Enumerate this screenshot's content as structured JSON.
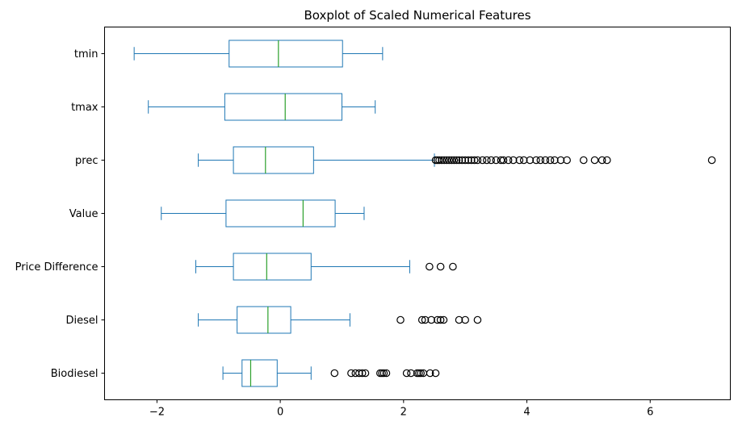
{
  "chart_data": {
    "type": "boxplot",
    "orientation": "horizontal",
    "title": "Boxplot of Scaled Numerical Features",
    "xlim": [
      -2.85,
      7.3
    ],
    "xticks": [
      -2,
      0,
      2,
      4,
      6
    ],
    "xtick_labels": [
      "−2",
      "0",
      "2",
      "4",
      "6"
    ],
    "grid": false,
    "colors": {
      "box": "#1f77b4",
      "median": "#2ca02c",
      "outlier": "#000000",
      "axes": "#000000"
    },
    "categories": [
      "Biodiesel",
      "Diesel",
      "Price Difference",
      "Value",
      "prec",
      "tmax",
      "tmin"
    ],
    "boxes": [
      {
        "name": "Biodiesel",
        "whisker_low": -0.93,
        "q1": -0.62,
        "median": -0.48,
        "q3": -0.05,
        "whisker_high": 0.5,
        "outliers": [
          0.88,
          1.15,
          1.22,
          1.28,
          1.33,
          1.38,
          1.62,
          1.65,
          1.68,
          1.72,
          2.05,
          2.12,
          2.22,
          2.25,
          2.28,
          2.32,
          2.43,
          2.52
        ]
      },
      {
        "name": "Diesel",
        "whisker_low": -1.33,
        "q1": -0.7,
        "median": -0.2,
        "q3": 0.17,
        "whisker_high": 1.13,
        "outliers": [
          1.95,
          2.3,
          2.35,
          2.45,
          2.55,
          2.6,
          2.65,
          2.9,
          3.0,
          3.2
        ]
      },
      {
        "name": "Price Difference",
        "whisker_low": -1.37,
        "q1": -0.76,
        "median": -0.22,
        "q3": 0.5,
        "whisker_high": 2.1,
        "outliers": [
          2.42,
          2.6,
          2.8
        ]
      },
      {
        "name": "Value",
        "whisker_low": -1.93,
        "q1": -0.88,
        "median": 0.37,
        "q3": 0.89,
        "whisker_high": 1.36,
        "outliers": []
      },
      {
        "name": "prec",
        "whisker_low": -1.33,
        "q1": -0.76,
        "median": -0.24,
        "q3": 0.54,
        "whisker_high": 2.5,
        "outliers": [
          2.52,
          2.55,
          2.58,
          2.62,
          2.66,
          2.7,
          2.74,
          2.78,
          2.82,
          2.86,
          2.9,
          2.95,
          3.0,
          3.05,
          3.1,
          3.15,
          3.2,
          3.28,
          3.35,
          3.42,
          3.5,
          3.58,
          3.62,
          3.7,
          3.78,
          3.88,
          3.95,
          4.05,
          4.15,
          4.22,
          4.3,
          4.38,
          4.45,
          4.55,
          4.65,
          4.92,
          5.1,
          5.22,
          5.3,
          7.0
        ]
      },
      {
        "name": "tmax",
        "whisker_low": -2.14,
        "q1": -0.9,
        "median": 0.08,
        "q3": 1.0,
        "whisker_high": 1.54,
        "outliers": []
      },
      {
        "name": "tmin",
        "whisker_low": -2.37,
        "q1": -0.83,
        "median": -0.03,
        "q3": 1.01,
        "whisker_high": 1.66,
        "outliers": []
      }
    ]
  }
}
